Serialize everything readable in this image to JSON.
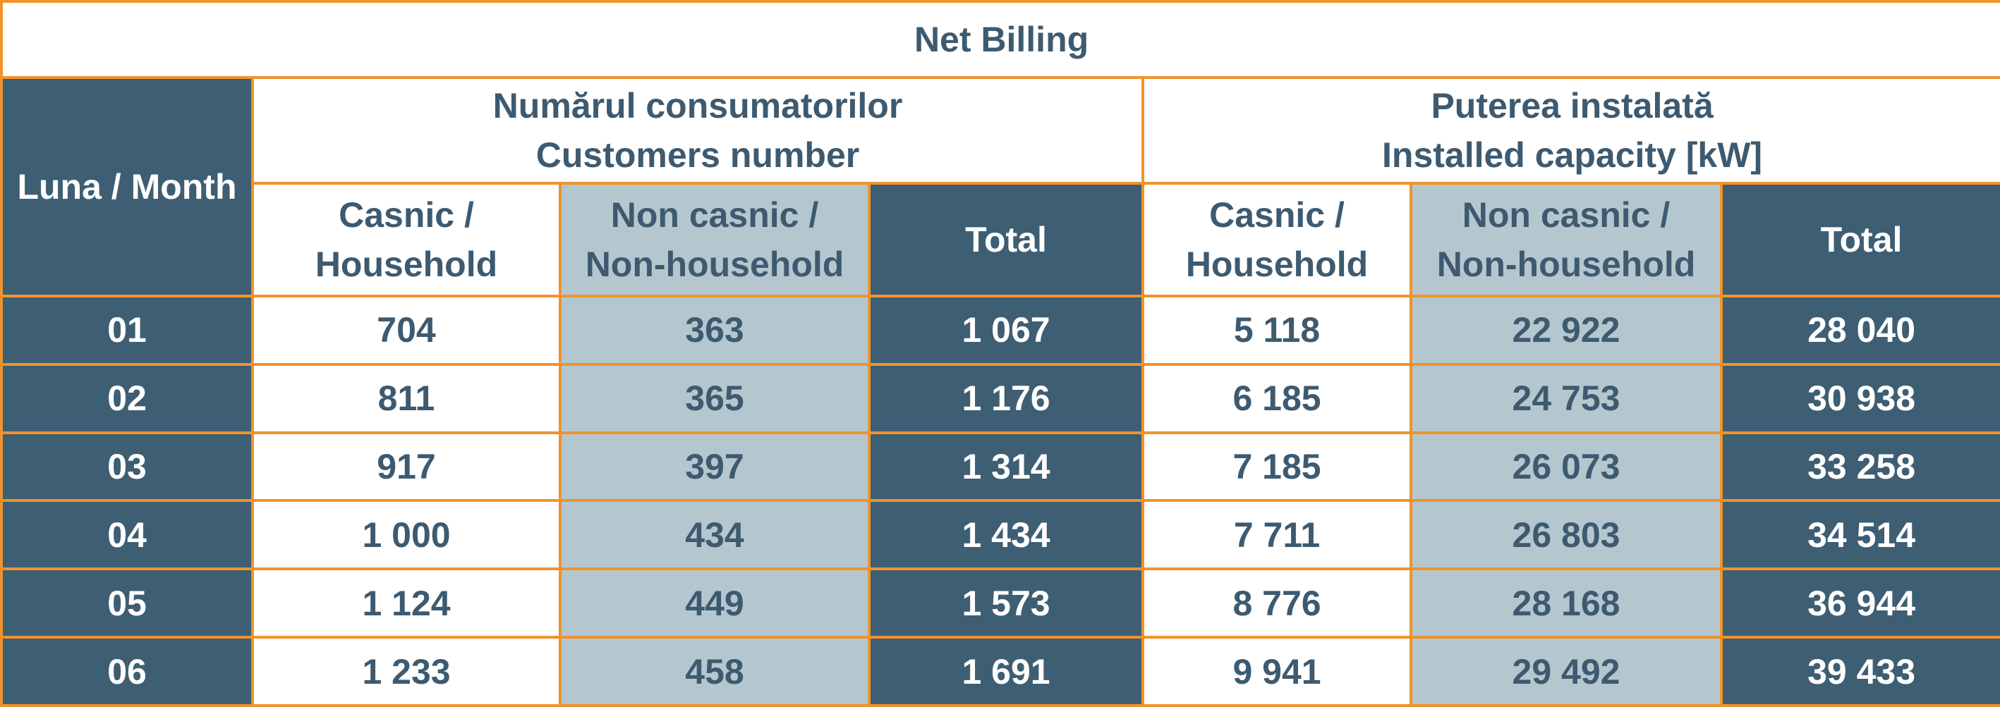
{
  "title": "Net Billing",
  "header": {
    "month_label": "Luna / Month",
    "customers_group": {
      "line1": "Numărul consumatorilor",
      "line2": "Customers number"
    },
    "capacity_group": {
      "line1": "Puterea instalată",
      "line2": "Installed capacity [kW]"
    },
    "household": {
      "line1": "Casnic /",
      "line2": "Household"
    },
    "non_household": {
      "line1": "Non casnic /",
      "line2": "Non-household"
    },
    "total": "Total"
  },
  "rows": [
    {
      "month": "01",
      "cust_household": "704",
      "cust_non_household": "363",
      "cust_total": "1 067",
      "cap_household": "5 118",
      "cap_non_household": "22 922",
      "cap_total": "28 040"
    },
    {
      "month": "02",
      "cust_household": "811",
      "cust_non_household": "365",
      "cust_total": "1 176",
      "cap_household": "6 185",
      "cap_non_household": "24 753",
      "cap_total": "30 938"
    },
    {
      "month": "03",
      "cust_household": "917",
      "cust_non_household": "397",
      "cust_total": "1 314",
      "cap_household": "7 185",
      "cap_non_household": "26 073",
      "cap_total": "33 258"
    },
    {
      "month": "04",
      "cust_household": "1 000",
      "cust_non_household": "434",
      "cust_total": "1 434",
      "cap_household": "7 711",
      "cap_non_household": "26 803",
      "cap_total": "34 514"
    },
    {
      "month": "05",
      "cust_household": "1 124",
      "cust_non_household": "449",
      "cust_total": "1 573",
      "cap_household": "8 776",
      "cap_non_household": "28 168",
      "cap_total": "36 944"
    },
    {
      "month": "06",
      "cust_household": "1 233",
      "cust_non_household": "458",
      "cust_total": "1 691",
      "cap_household": "9 941",
      "cap_non_household": "29 492",
      "cap_total": "39 433"
    }
  ],
  "colors": {
    "border": "#f0932b",
    "dark": "#3e5e73",
    "light": "#b5c7ce",
    "text_dark": "#3d5a70",
    "text_light": "#ffffff"
  }
}
